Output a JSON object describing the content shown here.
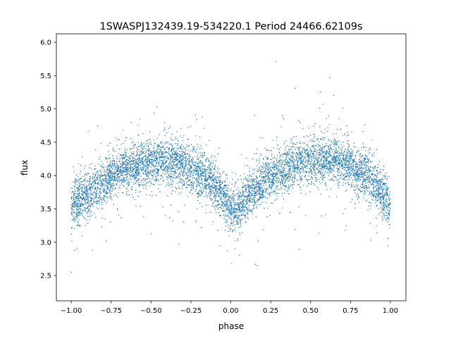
{
  "chart_data": {
    "type": "scatter",
    "title": "1SWASPJ132439.19-534220.1 Period 24466.62109s",
    "xlabel": "phase",
    "ylabel": "flux",
    "xlim": [
      -1.093,
      1.097
    ],
    "ylim": [
      2.12,
      6.127
    ],
    "xticks": [
      -1.0,
      -0.75,
      -0.5,
      -0.25,
      0.0,
      0.25,
      0.5,
      0.75,
      1.0
    ],
    "xtick_labels": [
      "−1.00",
      "−0.75",
      "−0.50",
      "−0.25",
      "0.00",
      "0.25",
      "0.50",
      "0.75",
      "1.00"
    ],
    "yticks": [
      2.5,
      3.0,
      3.5,
      4.0,
      4.5,
      5.0,
      5.5,
      6.0
    ],
    "ytick_labels": [
      "2.5",
      "3.0",
      "3.5",
      "4.0",
      "4.5",
      "5.0",
      "5.5",
      "6.0"
    ],
    "grid": false,
    "marker_color": "#1f77b4",
    "phase_range": [
      -1.0,
      1.0
    ],
    "binned_mean_flux": {
      "phase": [
        -1.0,
        -0.875,
        -0.75,
        -0.625,
        -0.5,
        -0.375,
        -0.25,
        -0.125,
        0.0,
        0.04,
        0.125,
        0.25,
        0.375,
        0.5,
        0.625,
        0.75,
        0.875,
        1.0
      ],
      "flux": [
        3.55,
        3.75,
        4.0,
        4.15,
        4.2,
        4.22,
        4.1,
        3.9,
        3.55,
        3.45,
        3.75,
        4.0,
        4.15,
        4.22,
        4.25,
        4.15,
        3.95,
        3.55
      ]
    },
    "flux_scatter_std": 0.17
  }
}
